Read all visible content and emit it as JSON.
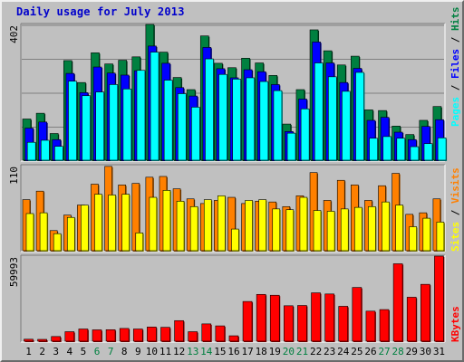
{
  "title": "Daily usage for July 2013",
  "chart_data": [
    {
      "type": "bar",
      "panel": "hits-files-pages",
      "categories": [
        "1",
        "2",
        "3",
        "4",
        "5",
        "6",
        "7",
        "8",
        "9",
        "10",
        "11",
        "12",
        "13",
        "14",
        "15",
        "16",
        "17",
        "18",
        "19",
        "20",
        "21",
        "22",
        "23",
        "24",
        "25",
        "26",
        "27",
        "28",
        "29",
        "30",
        "31"
      ],
      "ymax_label": "402",
      "ylim": [
        0,
        402
      ],
      "series": [
        {
          "name": "Hits",
          "color": "#008040",
          "values": [
            122,
            139,
            79,
            295,
            230,
            318,
            285,
            296,
            306,
            402,
            320,
            245,
            209,
            368,
            287,
            274,
            302,
            288,
            251,
            107,
            209,
            386,
            324,
            282,
            308,
            149,
            147,
            101,
            76,
            118,
            159
          ]
        },
        {
          "name": "Files",
          "color": "#0000ff",
          "values": [
            95,
            113,
            61,
            257,
            200,
            276,
            258,
            252,
            265,
            338,
            287,
            215,
            190,
            334,
            271,
            244,
            268,
            262,
            224,
            85,
            181,
            350,
            288,
            230,
            272,
            118,
            127,
            83,
            61,
            100,
            120
          ]
        },
        {
          "name": "Pages",
          "color": "#00ffff",
          "values": [
            53,
            59,
            41,
            234,
            191,
            202,
            224,
            211,
            266,
            320,
            237,
            197,
            157,
            300,
            254,
            240,
            244,
            233,
            206,
            80,
            152,
            288,
            247,
            204,
            260,
            65,
            70,
            65,
            40,
            49,
            66
          ]
        }
      ],
      "axis_label_parts": [
        "Pages",
        " / ",
        "Files",
        " / ",
        "Hits"
      ]
    },
    {
      "type": "bar",
      "panel": "visits-sites",
      "categories": [
        "1",
        "2",
        "3",
        "4",
        "5",
        "6",
        "7",
        "8",
        "9",
        "10",
        "11",
        "12",
        "13",
        "14",
        "15",
        "16",
        "17",
        "18",
        "19",
        "20",
        "21",
        "22",
        "23",
        "24",
        "25",
        "26",
        "27",
        "28",
        "29",
        "30",
        "31"
      ],
      "ymax_label": "110",
      "ylim": [
        0,
        110
      ],
      "series": [
        {
          "name": "Visits",
          "color": "#ff8000",
          "values": [
            66,
            77,
            26,
            46,
            59,
            86,
            109,
            85,
            87,
            95,
            96,
            80,
            67,
            61,
            65,
            69,
            61,
            64,
            63,
            57,
            71,
            101,
            65,
            91,
            85,
            65,
            84,
            100,
            47,
            49,
            67
          ]
        },
        {
          "name": "Sites",
          "color": "#ffff00",
          "values": [
            48,
            49,
            22,
            43,
            59,
            73,
            72,
            73,
            23,
            69,
            78,
            64,
            57,
            66,
            71,
            28,
            65,
            66,
            54,
            53,
            69,
            52,
            51,
            54,
            56,
            57,
            63,
            59,
            31,
            42,
            37
          ]
        }
      ],
      "axis_label_parts": [
        "Sites",
        " / ",
        "Visits"
      ]
    },
    {
      "type": "bar",
      "panel": "kbytes",
      "categories": [
        "1",
        "2",
        "3",
        "4",
        "5",
        "6",
        "7",
        "8",
        "9",
        "10",
        "11",
        "12",
        "13",
        "14",
        "15",
        "16",
        "17",
        "18",
        "19",
        "20",
        "21",
        "22",
        "23",
        "24",
        "25",
        "26",
        "27",
        "28",
        "29",
        "30",
        "31"
      ],
      "ymax_label": "59993",
      "ylim": [
        0,
        59993
      ],
      "series": [
        {
          "name": "KBytes",
          "color": "#ff0000",
          "values": [
            1400,
            1200,
            3300,
            6700,
            8600,
            8000,
            8100,
            9000,
            8600,
            10000,
            9800,
            14500,
            6700,
            12200,
            10800,
            3800,
            28000,
            33000,
            32400,
            25000,
            25200,
            34100,
            33300,
            24600,
            37900,
            21200,
            22300,
            54600,
            31000,
            40100,
            59993
          ]
        }
      ],
      "axis_label_parts": [
        "KBytes"
      ]
    }
  ],
  "weekend_days": [
    "6",
    "7",
    "13",
    "14",
    "20",
    "21",
    "27",
    "28"
  ],
  "colors": {
    "weekday": "#000080",
    "weekend": "#008040",
    "grid": "#808080",
    "panel": "#c0c0c0"
  }
}
